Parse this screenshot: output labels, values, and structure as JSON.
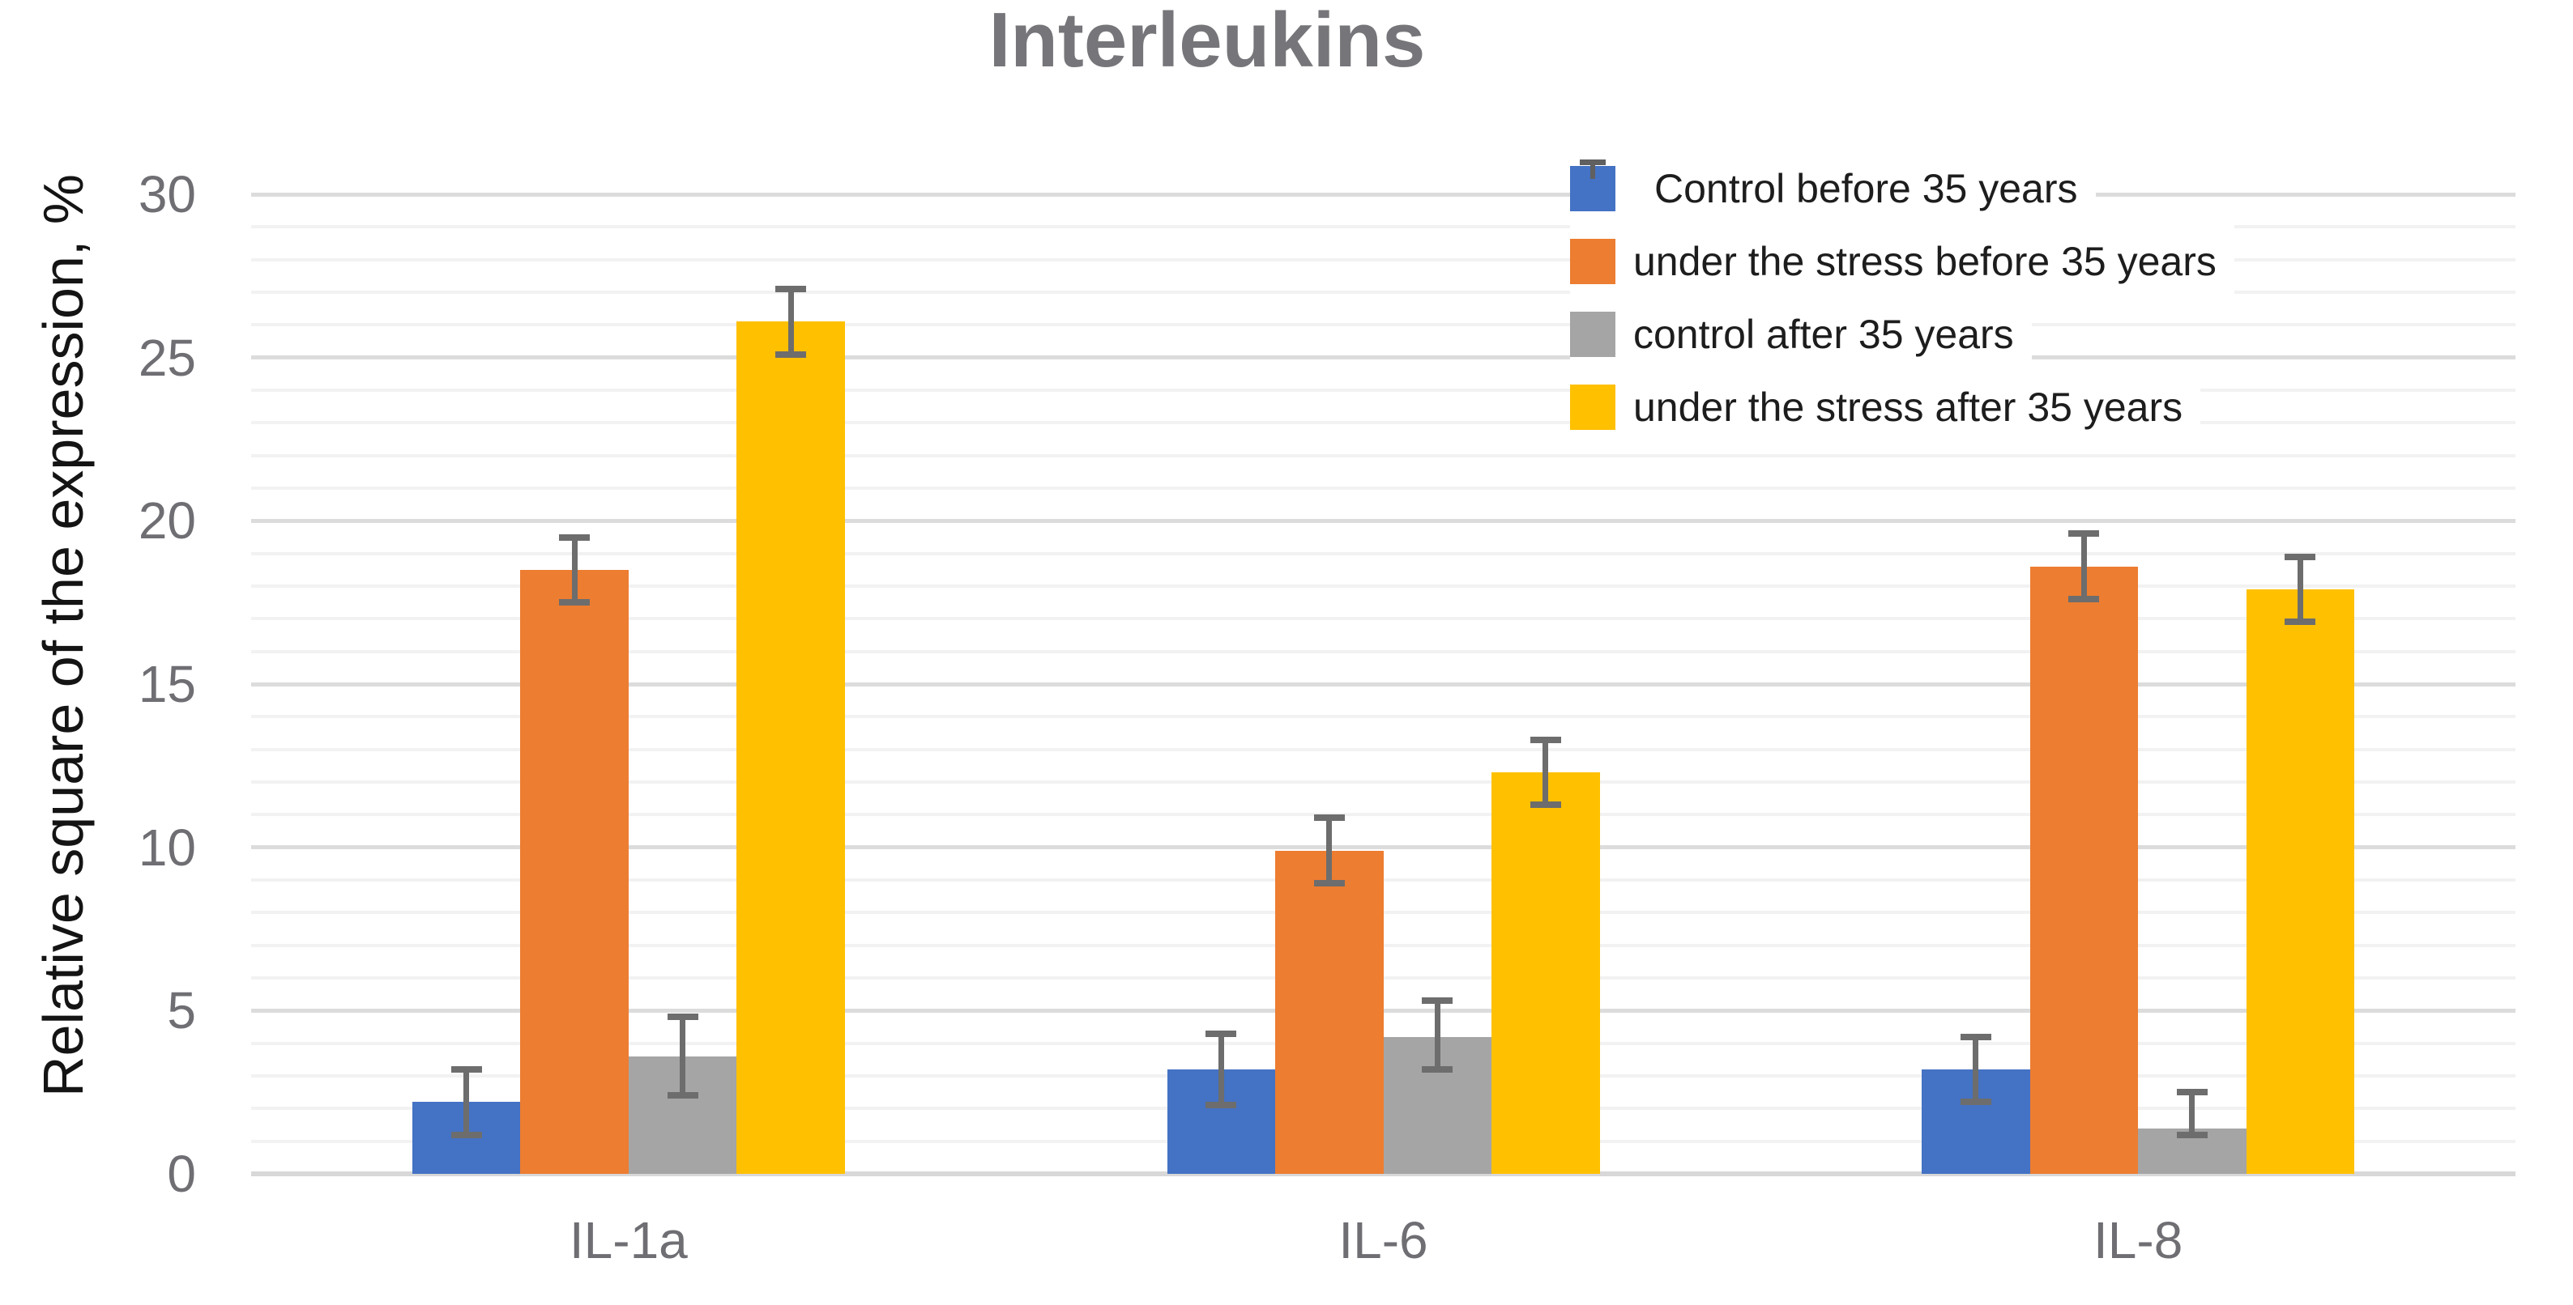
{
  "chart_data": {
    "type": "bar",
    "title": "Interleukins",
    "categories": [
      "IL-1a",
      "IL-6",
      "IL-8"
    ],
    "series": [
      {
        "name": "Control before 35 years",
        "color": "#4472C4",
        "values": [
          2.2,
          3.2,
          3.2
        ],
        "error_up": [
          1.0,
          1.1,
          1.0
        ],
        "error_down": [
          1.0,
          1.1,
          1.0
        ]
      },
      {
        "name": "under the stress before 35 years",
        "color": "#ED7D31",
        "values": [
          18.5,
          9.9,
          18.6
        ],
        "error_up": [
          1.0,
          1.0,
          1.0
        ],
        "error_down": [
          1.0,
          1.0,
          1.0
        ]
      },
      {
        "name": "control after 35 years",
        "color": "#A5A5A5",
        "values": [
          3.6,
          4.2,
          1.4
        ],
        "error_up": [
          1.2,
          1.1,
          1.1
        ],
        "error_down": [
          1.2,
          1.0,
          0.2
        ]
      },
      {
        "name": "under the stress after 35 years",
        "color": "#FFC000",
        "values": [
          26.1,
          12.3,
          17.9
        ],
        "error_up": [
          1.0,
          1.0,
          1.0
        ],
        "error_down": [
          1.0,
          1.0,
          1.0
        ]
      }
    ],
    "xlabel": "",
    "ylabel": "Relative square of the expression, %",
    "ylim": [
      0,
      30
    ],
    "y_ticks": [
      0,
      5,
      10,
      15,
      20,
      25,
      30
    ],
    "y_major_unit": 5,
    "y_minor_unit": 1,
    "grid": true,
    "error_bars": true,
    "legend_position": "top-right"
  },
  "colors": {
    "background": "#ffffff",
    "title_text": "#76767a",
    "axis_tick_text": "#6e6e73",
    "y_axis_title_text": "#141414",
    "legend_text": "#1d1d1d",
    "grid_minor": "#f2f2f2",
    "grid_major": "#dcdcdc",
    "axis_line": "#d8d8d8",
    "error_bar": "#6d6d6d"
  }
}
